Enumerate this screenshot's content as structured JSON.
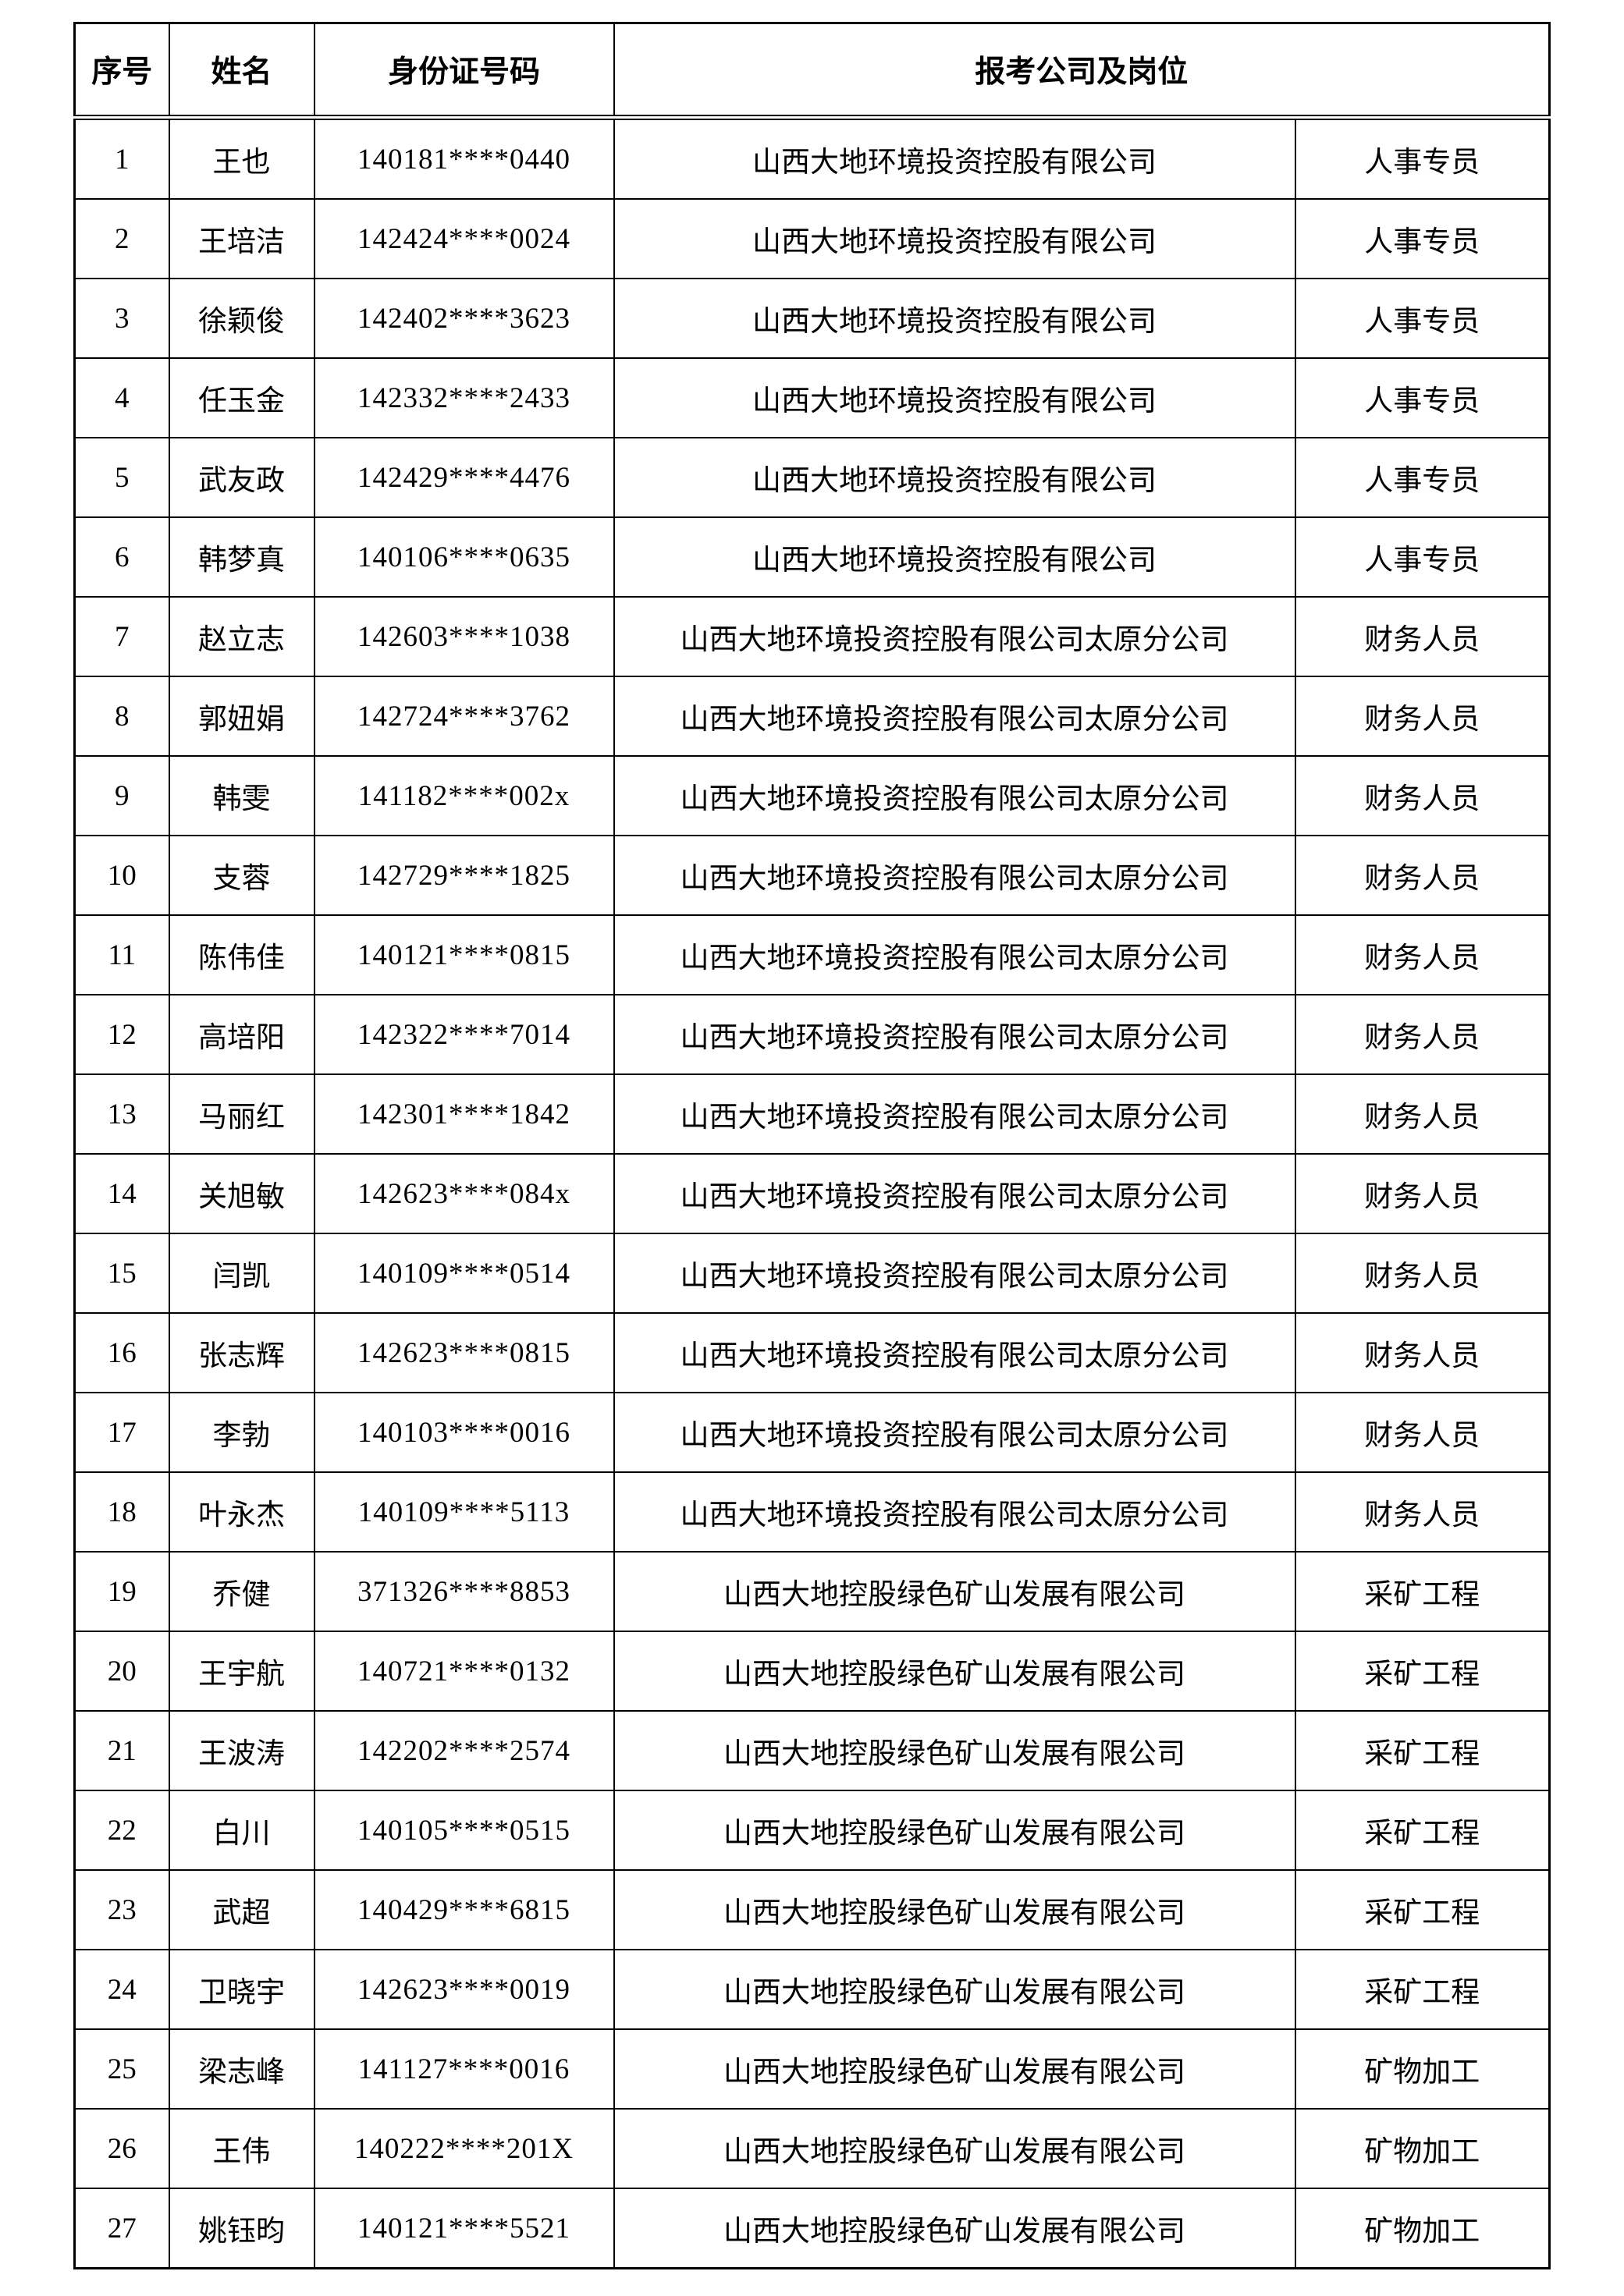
{
  "page": {
    "background": "#ffffff",
    "border_color": "#000000"
  },
  "table": {
    "headers": {
      "no": "序号",
      "name": "姓名",
      "id_number": "身份证号码",
      "company_position": "报考公司及岗位"
    },
    "rows": [
      {
        "no": "1",
        "name": "王也",
        "id_number": "140181****0440",
        "company": "山西大地环境投资控股有限公司",
        "position": "人事专员"
      },
      {
        "no": "2",
        "name": "王培洁",
        "id_number": "142424****0024",
        "company": "山西大地环境投资控股有限公司",
        "position": "人事专员"
      },
      {
        "no": "3",
        "name": "徐颖俊",
        "id_number": "142402****3623",
        "company": "山西大地环境投资控股有限公司",
        "position": "人事专员"
      },
      {
        "no": "4",
        "name": "任玉金",
        "id_number": "142332****2433",
        "company": "山西大地环境投资控股有限公司",
        "position": "人事专员"
      },
      {
        "no": "5",
        "name": "武友政",
        "id_number": "142429****4476",
        "company": "山西大地环境投资控股有限公司",
        "position": "人事专员"
      },
      {
        "no": "6",
        "name": "韩梦真",
        "id_number": "140106****0635",
        "company": "山西大地环境投资控股有限公司",
        "position": "人事专员"
      },
      {
        "no": "7",
        "name": "赵立志",
        "id_number": "142603****1038",
        "company": "山西大地环境投资控股有限公司太原分公司",
        "position": "财务人员"
      },
      {
        "no": "8",
        "name": "郭妞娟",
        "id_number": "142724****3762",
        "company": "山西大地环境投资控股有限公司太原分公司",
        "position": "财务人员"
      },
      {
        "no": "9",
        "name": "韩雯",
        "id_number": "141182****002x",
        "company": "山西大地环境投资控股有限公司太原分公司",
        "position": "财务人员"
      },
      {
        "no": "10",
        "name": "支蓉",
        "id_number": "142729****1825",
        "company": "山西大地环境投资控股有限公司太原分公司",
        "position": "财务人员"
      },
      {
        "no": "11",
        "name": "陈伟佳",
        "id_number": "140121****0815",
        "company": "山西大地环境投资控股有限公司太原分公司",
        "position": "财务人员"
      },
      {
        "no": "12",
        "name": "高培阳",
        "id_number": "142322****7014",
        "company": "山西大地环境投资控股有限公司太原分公司",
        "position": "财务人员"
      },
      {
        "no": "13",
        "name": "马丽红",
        "id_number": "142301****1842",
        "company": "山西大地环境投资控股有限公司太原分公司",
        "position": "财务人员"
      },
      {
        "no": "14",
        "name": "关旭敏",
        "id_number": "142623****084x",
        "company": "山西大地环境投资控股有限公司太原分公司",
        "position": "财务人员"
      },
      {
        "no": "15",
        "name": "闫凯",
        "id_number": "140109****0514",
        "company": "山西大地环境投资控股有限公司太原分公司",
        "position": "财务人员"
      },
      {
        "no": "16",
        "name": "张志辉",
        "id_number": "142623****0815",
        "company": "山西大地环境投资控股有限公司太原分公司",
        "position": "财务人员"
      },
      {
        "no": "17",
        "name": "李勃",
        "id_number": "140103****0016",
        "company": "山西大地环境投资控股有限公司太原分公司",
        "position": "财务人员"
      },
      {
        "no": "18",
        "name": "叶永杰",
        "id_number": "140109****5113",
        "company": "山西大地环境投资控股有限公司太原分公司",
        "position": "财务人员"
      },
      {
        "no": "19",
        "name": "乔健",
        "id_number": "371326****8853",
        "company": "山西大地控股绿色矿山发展有限公司",
        "position": "采矿工程"
      },
      {
        "no": "20",
        "name": "王宇航",
        "id_number": "140721****0132",
        "company": "山西大地控股绿色矿山发展有限公司",
        "position": "采矿工程"
      },
      {
        "no": "21",
        "name": "王波涛",
        "id_number": "142202****2574",
        "company": "山西大地控股绿色矿山发展有限公司",
        "position": "采矿工程"
      },
      {
        "no": "22",
        "name": "白川",
        "id_number": "140105****0515",
        "company": "山西大地控股绿色矿山发展有限公司",
        "position": "采矿工程"
      },
      {
        "no": "23",
        "name": "武超",
        "id_number": "140429****6815",
        "company": "山西大地控股绿色矿山发展有限公司",
        "position": "采矿工程"
      },
      {
        "no": "24",
        "name": "卫晓宇",
        "id_number": "142623****0019",
        "company": "山西大地控股绿色矿山发展有限公司",
        "position": "采矿工程"
      },
      {
        "no": "25",
        "name": "梁志峰",
        "id_number": "141127****0016",
        "company": "山西大地控股绿色矿山发展有限公司",
        "position": "矿物加工"
      },
      {
        "no": "26",
        "name": "王伟",
        "id_number": "140222****201X",
        "company": "山西大地控股绿色矿山发展有限公司",
        "position": "矿物加工"
      },
      {
        "no": "27",
        "name": "姚钰昀",
        "id_number": "140121****5521",
        "company": "山西大地控股绿色矿山发展有限公司",
        "position": "矿物加工"
      }
    ]
  }
}
